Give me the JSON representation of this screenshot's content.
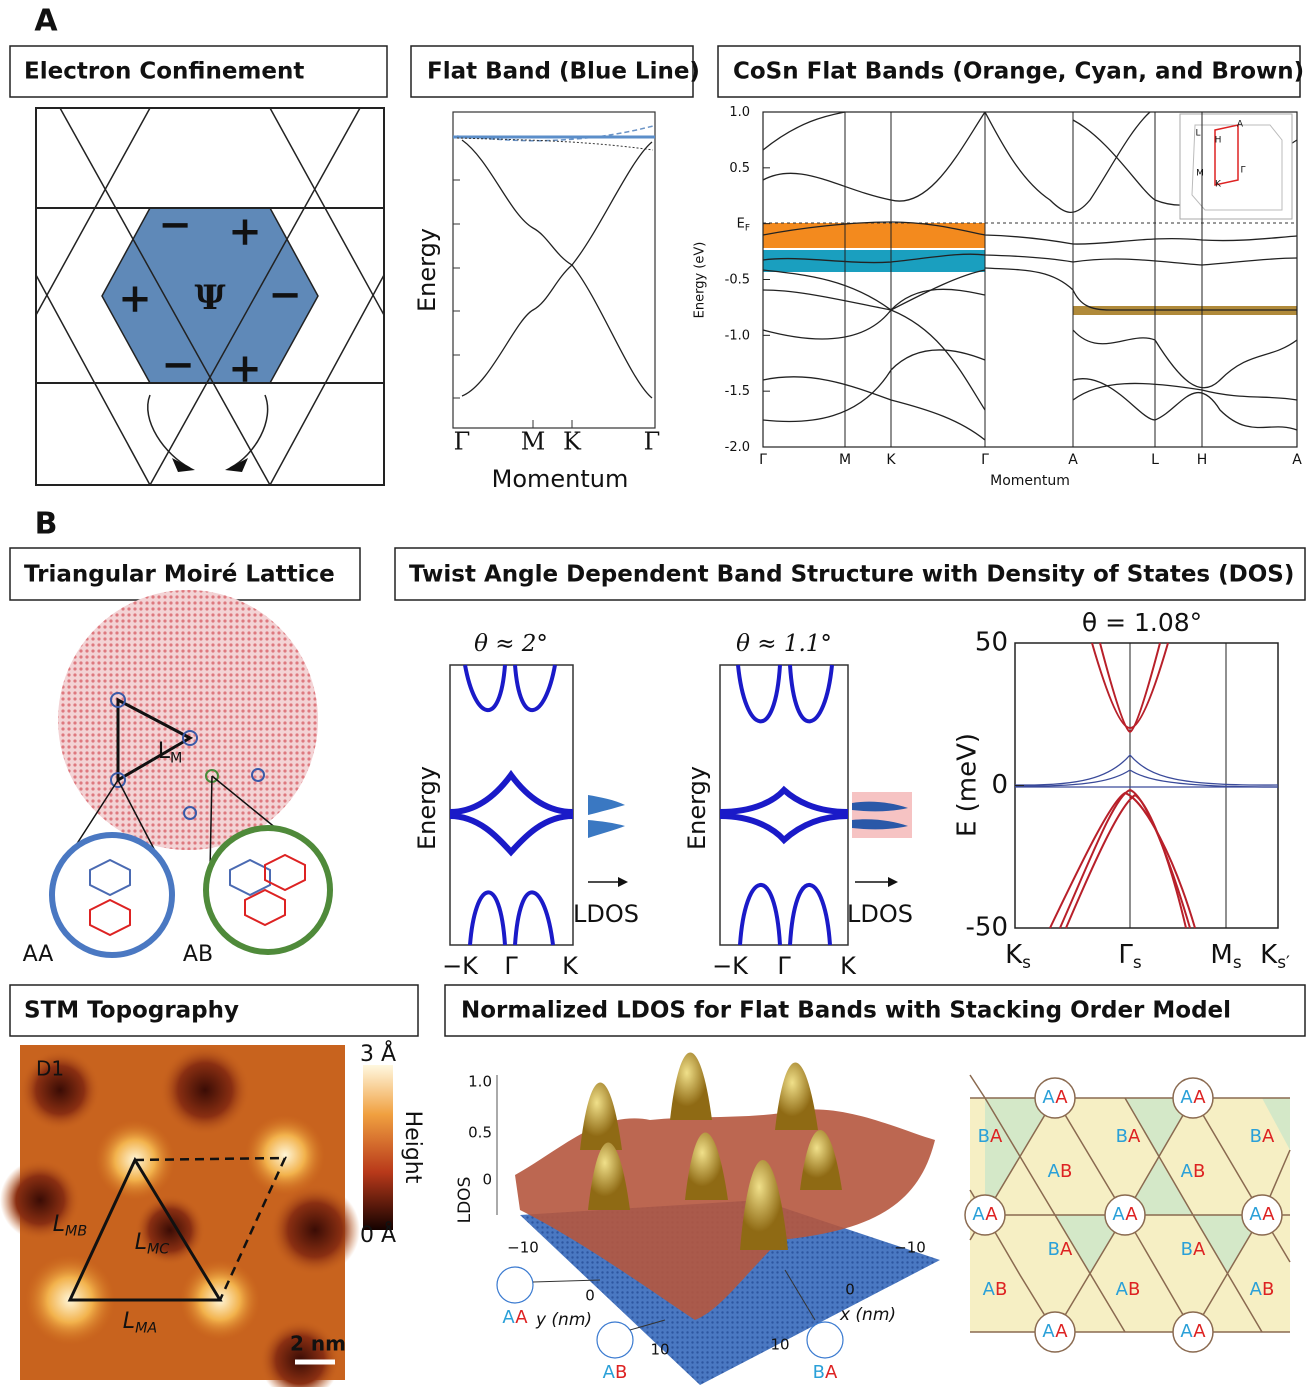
{
  "panel_a": {
    "label": "A",
    "electron_confinement": {
      "title": "Electron Confinement",
      "signs": [
        "−",
        "+",
        "+",
        "Ψ",
        "−",
        "−",
        "+"
      ]
    },
    "flat_band": {
      "title": "Flat Band (Blue Line)",
      "y_label": "Energy",
      "x_ticks": [
        "Γ",
        "M",
        "K",
        "Γ"
      ],
      "x_label": "Momentum"
    },
    "cosn": {
      "title": "CoSn Flat Bands (Orange, Cyan, and Brown)",
      "y_label": "Energy (eV)",
      "ylim": [
        -2,
        1
      ],
      "y_ticks": [
        {
          "value": 1,
          "label": "1.0"
        },
        {
          "value": 0.5,
          "label": "0.5"
        },
        {
          "value": 0,
          "label": "E",
          "sub": "F"
        },
        {
          "value": -0.5,
          "label": "-0.5"
        },
        {
          "value": -1,
          "label": "-1.0"
        },
        {
          "value": -1.5,
          "label": "-1.5"
        },
        {
          "value": -2,
          "label": "-2.0"
        }
      ],
      "x_ticks": [
        "Γ",
        "M",
        "K",
        "Γ",
        "A",
        "L",
        "H",
        "A"
      ],
      "x_label": "Momentum",
      "inset_labels": [
        "L",
        "H",
        "A",
        "M",
        "K",
        "Γ"
      ]
    }
  },
  "panel_b": {
    "label": "B",
    "moire": {
      "title": "Triangular Moiré Lattice",
      "lm": {
        "main": "L",
        "sub": "M"
      },
      "aa": "AA",
      "ab": "AB"
    },
    "twist": {
      "title": "Twist Angle Dependent Band Structure with Density of States (DOS)",
      "plots": [
        {
          "angle": "θ ≈ 2°",
          "y_label": "Energy",
          "dos_label": "LDOS",
          "x_ticks": [
            "−K",
            "Γ",
            "K"
          ]
        },
        {
          "angle": "θ ≈ 1.1°",
          "y_label": "Energy",
          "dos_label": "LDOS",
          "x_ticks": [
            "−K",
            "Γ",
            "K"
          ]
        }
      ],
      "mev": {
        "title": "θ = 1.08°",
        "y_label": "E (meV)",
        "ylim": [
          -50,
          50
        ],
        "y_ticks": [
          50,
          0,
          -50
        ],
        "x_ticks": [
          {
            "main": "K",
            "sub": "s"
          },
          {
            "main": "Γ",
            "sub": "s"
          },
          {
            "main": "M",
            "sub": "s"
          },
          {
            "main": "K",
            "sub": "s′"
          }
        ]
      }
    },
    "stm": {
      "title": "STM Topography",
      "tag": "D1",
      "bar_top": "3 Å",
      "bar_label": "Height",
      "bar_bottom": "0 Å",
      "lengths": [
        {
          "main": "L",
          "sub": "MB"
        },
        {
          "main": "L",
          "sub": "MC"
        },
        {
          "main": "L",
          "sub": "MA"
        }
      ],
      "scale": "2 nm"
    },
    "ldos": {
      "title": "Normalized LDOS for Flat Bands with Stacking Order Model",
      "z_ticks": [
        "1.0",
        "0.5",
        "0"
      ],
      "z_label": "LDOS",
      "y_ticks": [
        "−10",
        "0",
        "10"
      ],
      "y_label": "y (nm)",
      "x_ticks": [
        "−10",
        "0",
        "10"
      ],
      "x_label": "x (nm)",
      "stackings": [
        "AA",
        "AB",
        "BA"
      ]
    },
    "stacking_model": {
      "aa": [
        "AA",
        "AA",
        "AA",
        "AA",
        "AA",
        "AA",
        "AA"
      ],
      "ba": [
        "BA",
        "BA",
        "BA",
        "BA",
        "BA"
      ],
      "ab": [
        "AB",
        "AB",
        "AB",
        "AB",
        "AB"
      ]
    }
  }
}
